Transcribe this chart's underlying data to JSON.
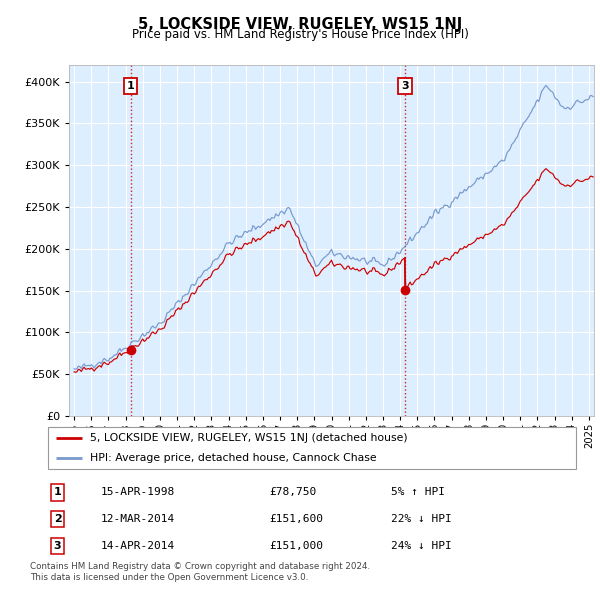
{
  "title": "5, LOCKSIDE VIEW, RUGELEY, WS15 1NJ",
  "subtitle": "Price paid vs. HM Land Registry's House Price Index (HPI)",
  "legend_line1": "5, LOCKSIDE VIEW, RUGELEY, WS15 1NJ (detached house)",
  "legend_line2": "HPI: Average price, detached house, Cannock Chase",
  "footer": "Contains HM Land Registry data © Crown copyright and database right 2024.\nThis data is licensed under the Open Government Licence v3.0.",
  "hpi_color": "#7799cc",
  "price_color": "#cc0000",
  "bg_color": "#ddeeff",
  "grid_color": "#ffffff",
  "sale1_date": 1998.29,
  "sale1_price": 78750,
  "sale3_date": 2014.28,
  "sale3_price": 151000,
  "vline1_date": 1998.29,
  "vline2_date": 2014.28,
  "table_rows": [
    {
      "num": "1",
      "date": "15-APR-1998",
      "price": "£78,750",
      "change": "5% ↑ HPI"
    },
    {
      "num": "2",
      "date": "12-MAR-2014",
      "price": "£151,600",
      "change": "22% ↓ HPI"
    },
    {
      "num": "3",
      "date": "14-APR-2014",
      "price": "£151,000",
      "change": "24% ↓ HPI"
    }
  ],
  "ylim": [
    0,
    420000
  ],
  "xlim_start": 1994.7,
  "xlim_end": 2025.3
}
